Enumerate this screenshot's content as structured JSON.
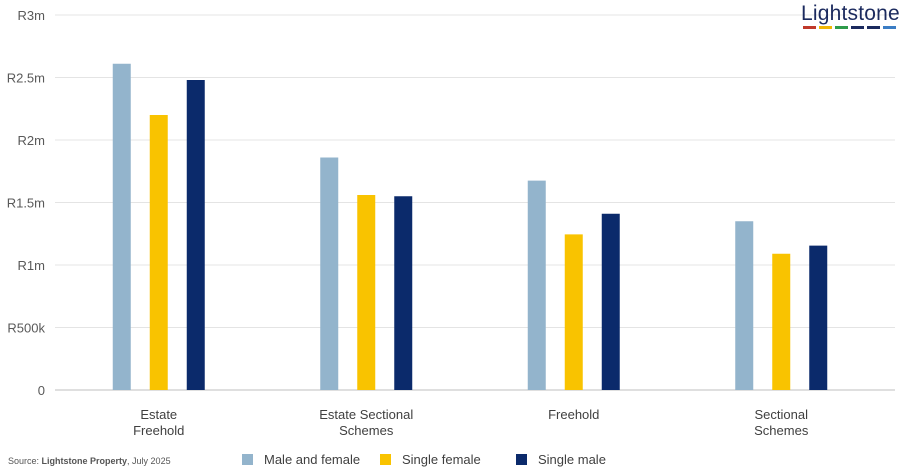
{
  "brand": {
    "logo_text": "Lightstone",
    "logo_colors": [
      "#c0392b",
      "#f2b705",
      "#2e9b4a",
      "#1b2a5e",
      "#1b2a5e",
      "#3b7dc4"
    ]
  },
  "source": {
    "prefix": "Source: ",
    "org": "Lightstone Property",
    "suffix": ", July 2025"
  },
  "chart_data": {
    "type": "bar",
    "categories": [
      [
        "Estate",
        "Freehold"
      ],
      [
        "Estate Sectional",
        "Schemes"
      ],
      [
        "Freehold"
      ],
      [
        "Sectional",
        "Schemes"
      ]
    ],
    "series": [
      {
        "name": "Male and female",
        "color": "#93b4cc",
        "values": [
          2610000,
          1860000,
          1675000,
          1350000
        ]
      },
      {
        "name": "Single female",
        "color": "#f9c300",
        "values": [
          2200000,
          1560000,
          1245000,
          1090000
        ]
      },
      {
        "name": "Single male",
        "color": "#0b2a6b",
        "values": [
          2480000,
          1550000,
          1410000,
          1155000
        ]
      }
    ],
    "ylim": [
      0,
      3000000
    ],
    "yticks": [
      0,
      500000,
      1000000,
      1500000,
      2000000,
      2500000,
      3000000
    ],
    "ytick_labels": [
      "0",
      "R500k",
      "R1m",
      "R1.5m",
      "R2m",
      "R2.5m",
      "R3m"
    ],
    "grid": true,
    "legend_position": "bottom"
  }
}
